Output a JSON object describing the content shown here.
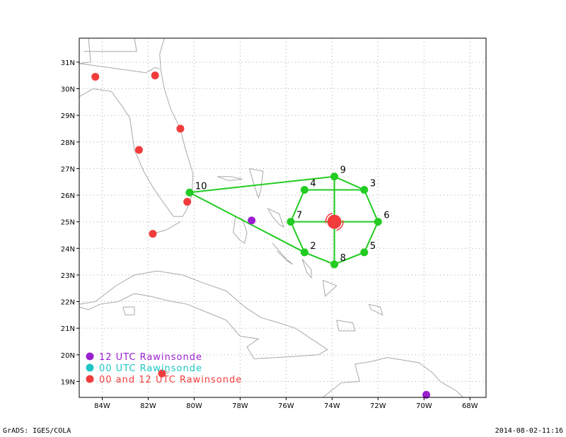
{
  "footer": {
    "left": "GrADS: IGES/COLA",
    "right": "2014-08-02-11:16"
  },
  "colors": {
    "coast": "#a9a9a9",
    "grid": "#a9a9a9",
    "frame": "#000000",
    "pattern": "#22cc22",
    "rawin_12": "#9a1fcf",
    "rawin_00": "#1fc6c6",
    "rawin_both": "#f23c3c"
  },
  "legend": [
    {
      "text": "12 UTC Rawinsonde",
      "color": "#9a1fcf"
    },
    {
      "text": "00 UTC Rawinsonde",
      "color": "#1fc6c6"
    },
    {
      "text": "00 and 12 UTC Rawinsonde",
      "color": "#f23c3c"
    }
  ],
  "map": {
    "lon_range": [
      -85.0,
      -67.3
    ],
    "lat_range": [
      18.4,
      31.9
    ],
    "lon_ticks": [
      "84W",
      "82W",
      "80W",
      "78W",
      "76W",
      "74W",
      "72W",
      "70W",
      "68W"
    ],
    "lat_ticks": [
      "19N",
      "20N",
      "21N",
      "22N",
      "23N",
      "24N",
      "25N",
      "26N",
      "27N",
      "28N",
      "29N",
      "30N",
      "31N"
    ]
  },
  "storm_center": {
    "lon": -73.9,
    "lat": 25.0
  },
  "dropsondes": [
    {
      "label": "2",
      "lon": -75.2,
      "lat": 23.85
    },
    {
      "label": "3",
      "lon": -72.6,
      "lat": 26.2
    },
    {
      "label": "4",
      "lon": -75.2,
      "lat": 26.2
    },
    {
      "label": "5",
      "lon": -72.6,
      "lat": 23.85
    },
    {
      "label": "6",
      "lon": -72.0,
      "lat": 25.0
    },
    {
      "label": "7",
      "lon": -75.8,
      "lat": 25.0
    },
    {
      "label": "8",
      "lon": -73.9,
      "lat": 23.4
    },
    {
      "label": "9",
      "lon": -73.9,
      "lat": 26.7
    },
    {
      "label": "10",
      "lon": -80.2,
      "lat": 26.1
    }
  ],
  "flight_track": [
    "10",
    "9",
    "3",
    "4",
    "7",
    "2",
    "8",
    "5",
    "6",
    "3",
    "9",
    "8",
    "2",
    "10"
  ],
  "rawinsondes_12": [
    {
      "lon": -77.5,
      "lat": 25.05
    },
    {
      "lon": -69.9,
      "lat": 18.5
    }
  ],
  "rawinsondes_both": [
    {
      "lon": -84.3,
      "lat": 30.45
    },
    {
      "lon": -81.7,
      "lat": 30.5
    },
    {
      "lon": -80.6,
      "lat": 28.5
    },
    {
      "lon": -82.4,
      "lat": 27.7
    },
    {
      "lon": -80.3,
      "lat": 25.75
    },
    {
      "lon": -81.8,
      "lat": 24.55
    },
    {
      "lon": -81.4,
      "lat": 19.3
    }
  ]
}
